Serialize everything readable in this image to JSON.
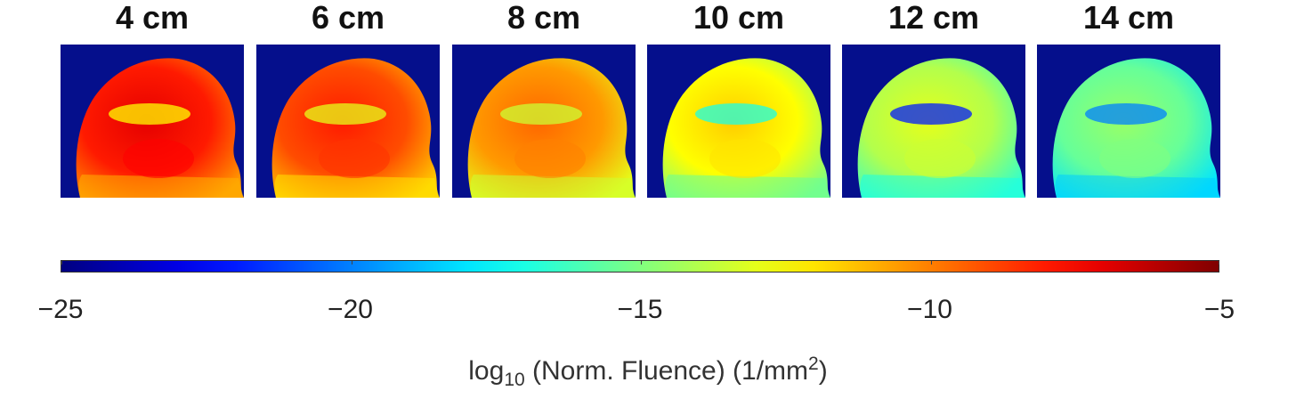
{
  "chart_data": {
    "type": "heatmap",
    "panels": [
      {
        "label": "4 cm",
        "separation_cm": 4,
        "mean_log10_fluence": -8.0,
        "min_log10_fluence": -12.5
      },
      {
        "label": "6 cm",
        "separation_cm": 6,
        "mean_log10_fluence": -9.0,
        "min_log10_fluence": -13.0
      },
      {
        "label": "8 cm",
        "separation_cm": 8,
        "mean_log10_fluence": -10.5,
        "min_log10_fluence": -13.5
      },
      {
        "label": "10 cm",
        "separation_cm": 10,
        "mean_log10_fluence": -12.5,
        "min_log10_fluence": -17.0
      },
      {
        "label": "12 cm",
        "separation_cm": 12,
        "mean_log10_fluence": -14.0,
        "min_log10_fluence": -22.0
      },
      {
        "label": "14 cm",
        "separation_cm": 14,
        "mean_log10_fluence": -15.5,
        "min_log10_fluence": -20.0
      }
    ],
    "colorbar": {
      "range": [
        -25,
        -5
      ],
      "tick_labels": [
        "−25",
        "−20",
        "−15",
        "−10",
        "−5"
      ],
      "ticks": [
        -25,
        -20,
        -15,
        -10,
        -5
      ],
      "title_parts": [
        "log",
        "10",
        " (Norm. Fluence) (1/mm",
        "2",
        ")"
      ],
      "colormap": "jet"
    },
    "background_color": "#050f8c"
  }
}
